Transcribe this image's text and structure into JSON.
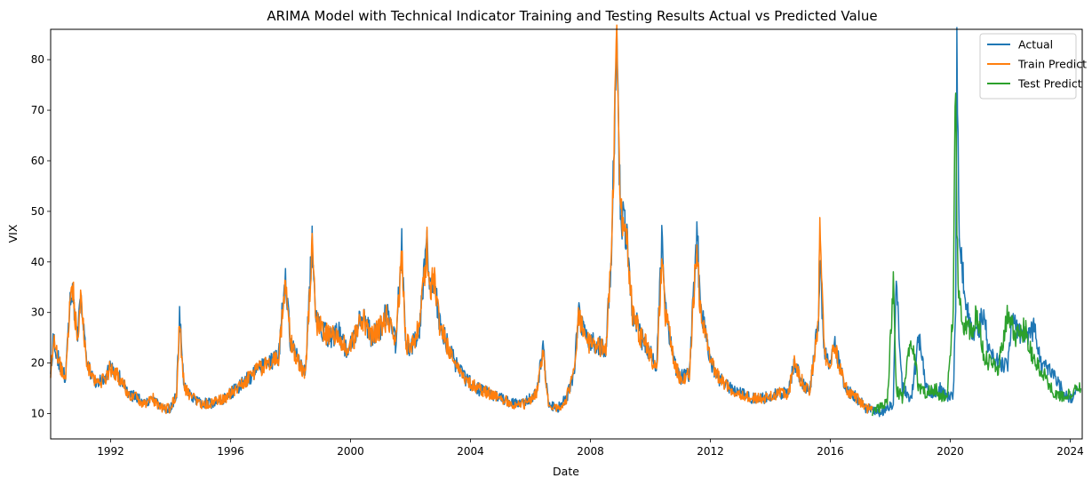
{
  "chart_data": {
    "type": "line",
    "title": "ARIMA Model with Technical Indicator Training and Testing Results Actual vs Predicted Value",
    "xlabel": "Date",
    "ylabel": "VIX",
    "xlim": [
      1990.0,
      2024.4
    ],
    "ylim": [
      5,
      86
    ],
    "x_ticks": [
      1992,
      1996,
      2000,
      2004,
      2008,
      2012,
      2016,
      2020,
      2024
    ],
    "y_ticks": [
      10,
      20,
      30,
      40,
      50,
      60,
      70,
      80
    ],
    "grid": false,
    "legend_position": "top-right",
    "series": [
      {
        "name": "Actual",
        "color": "#1f77b4",
        "x": [
          1990.0,
          1990.1,
          1990.2,
          1990.35,
          1990.5,
          1990.65,
          1990.75,
          1990.8,
          1990.9,
          1991.0,
          1991.2,
          1991.5,
          1991.8,
          1992.0,
          1992.3,
          1992.6,
          1992.9,
          1993.1,
          1993.4,
          1993.7,
          1994.0,
          1994.2,
          1994.3,
          1994.45,
          1994.6,
          1994.8,
          1995.0,
          1995.4,
          1995.8,
          1996.2,
          1996.6,
          1997.0,
          1997.3,
          1997.6,
          1997.83,
          1998.0,
          1998.3,
          1998.5,
          1998.72,
          1998.85,
          1999.0,
          1999.3,
          1999.6,
          1999.9,
          2000.2,
          2000.4,
          2000.7,
          2001.0,
          2001.2,
          2001.5,
          2001.71,
          2001.85,
          2002.0,
          2002.3,
          2002.55,
          2002.65,
          2002.8,
          2002.95,
          2003.2,
          2003.5,
          2003.8,
          2004.2,
          2004.6,
          2005.0,
          2005.4,
          2005.8,
          2006.2,
          2006.42,
          2006.6,
          2006.9,
          2007.2,
          2007.45,
          2007.6,
          2007.9,
          2008.2,
          2008.5,
          2008.7,
          2008.8,
          2008.88,
          2009.0,
          2009.2,
          2009.4,
          2009.7,
          2010.0,
          2010.2,
          2010.38,
          2010.5,
          2010.8,
          2011.0,
          2011.3,
          2011.55,
          2011.65,
          2011.8,
          2012.0,
          2012.3,
          2012.7,
          2013.0,
          2013.4,
          2013.8,
          2014.2,
          2014.6,
          2014.8,
          2015.0,
          2015.3,
          2015.6,
          2015.65,
          2015.8,
          2016.0,
          2016.1,
          2016.5,
          2016.9,
          2017.2,
          2017.4,
          2017.6,
          2017.9,
          2018.1,
          2018.2,
          2018.4,
          2018.7,
          2018.95,
          2019.2,
          2019.5,
          2019.7,
          2019.9,
          2020.1,
          2020.18,
          2020.22,
          2020.3,
          2020.5,
          2020.7,
          2020.9,
          2021.1,
          2021.3,
          2021.6,
          2021.9,
          2022.1,
          2022.2,
          2022.5,
          2022.8,
          2023.0,
          2023.2,
          2023.5,
          2023.8,
          2024.0,
          2024.2,
          2024.35
        ],
        "y": [
          17,
          26,
          22,
          19,
          17,
          33,
          36,
          29,
          26,
          34,
          20,
          16,
          17,
          19,
          17,
          14,
          13,
          12,
          13,
          11,
          11,
          14,
          29,
          15,
          14,
          13,
          12,
          12,
          13,
          15,
          17,
          19,
          20,
          21,
          38,
          24,
          20,
          18,
          45,
          28,
          27,
          25,
          26,
          22,
          26,
          30,
          25,
          27,
          30,
          24,
          43,
          24,
          23,
          27,
          44,
          35,
          38,
          28,
          24,
          20,
          17,
          15,
          14,
          13,
          12,
          12,
          14,
          23,
          12,
          11,
          13,
          18,
          30,
          24,
          24,
          22,
          40,
          65,
          80,
          50,
          45,
          30,
          25,
          22,
          18,
          45,
          30,
          20,
          17,
          18,
          48,
          32,
          27,
          20,
          17,
          15,
          14,
          13,
          13,
          14,
          14,
          20,
          17,
          14,
          28,
          40,
          22,
          20,
          25,
          15,
          13,
          11,
          11,
          10,
          11,
          12,
          37,
          15,
          13,
          25,
          15,
          14,
          15,
          13,
          14,
          30,
          82,
          45,
          32,
          27,
          26,
          30,
          22,
          20,
          19,
          30,
          27,
          25,
          27,
          20,
          19,
          17,
          14,
          13,
          14,
          15
        ]
      },
      {
        "name": "Train Predict",
        "color": "#ff7f0e",
        "x": [
          1990.0,
          1990.1,
          1990.2,
          1990.35,
          1990.5,
          1990.65,
          1990.75,
          1990.8,
          1990.9,
          1991.0,
          1991.2,
          1991.5,
          1991.8,
          1992.0,
          1992.3,
          1992.6,
          1992.9,
          1993.1,
          1993.4,
          1993.7,
          1994.0,
          1994.2,
          1994.3,
          1994.45,
          1994.6,
          1994.8,
          1995.0,
          1995.4,
          1995.8,
          1996.2,
          1996.6,
          1997.0,
          1997.3,
          1997.6,
          1997.83,
          1998.0,
          1998.3,
          1998.5,
          1998.72,
          1998.85,
          1999.0,
          1999.3,
          1999.6,
          1999.9,
          2000.2,
          2000.4,
          2000.7,
          2001.0,
          2001.2,
          2001.5,
          2001.71,
          2001.85,
          2002.0,
          2002.3,
          2002.55,
          2002.65,
          2002.8,
          2002.95,
          2003.2,
          2003.5,
          2003.8,
          2004.2,
          2004.6,
          2005.0,
          2005.4,
          2005.8,
          2006.2,
          2006.42,
          2006.6,
          2006.9,
          2007.2,
          2007.45,
          2007.6,
          2007.9,
          2008.2,
          2008.5,
          2008.7,
          2008.8,
          2008.88,
          2009.0,
          2009.2,
          2009.4,
          2009.7,
          2010.0,
          2010.2,
          2010.38,
          2010.5,
          2010.8,
          2011.0,
          2011.3,
          2011.55,
          2011.65,
          2011.8,
          2012.0,
          2012.3,
          2012.7,
          2013.0,
          2013.4,
          2013.8,
          2014.2,
          2014.6,
          2014.8,
          2015.0,
          2015.3,
          2015.6,
          2015.65,
          2015.8,
          2016.0,
          2016.1,
          2016.5,
          2016.9,
          2017.2,
          2017.4
        ],
        "y": [
          17,
          25,
          22,
          19,
          17,
          32,
          35,
          29,
          26,
          33,
          20,
          16,
          17,
          19,
          17,
          14,
          13,
          12,
          13,
          11,
          11,
          14,
          28,
          15,
          14,
          13,
          12,
          12,
          13,
          15,
          17,
          19,
          20,
          21,
          36,
          24,
          20,
          18,
          43,
          28,
          27,
          25,
          26,
          22,
          26,
          29,
          25,
          27,
          29,
          24,
          41,
          24,
          23,
          27,
          43,
          35,
          37,
          28,
          24,
          20,
          17,
          15,
          14,
          13,
          12,
          12,
          14,
          22,
          12,
          11,
          13,
          18,
          29,
          24,
          24,
          22,
          40,
          65,
          81,
          50,
          45,
          30,
          25,
          22,
          18,
          40,
          30,
          20,
          17,
          18,
          44,
          32,
          27,
          20,
          17,
          15,
          14,
          13,
          13,
          14,
          14,
          20,
          17,
          14,
          28,
          45,
          22,
          20,
          24,
          15,
          13,
          11,
          11
        ]
      },
      {
        "name": "Test Predict",
        "color": "#2ca02c",
        "x": [
          2017.4,
          2017.6,
          2017.9,
          2018.1,
          2018.2,
          2018.4,
          2018.7,
          2018.95,
          2019.2,
          2019.5,
          2019.7,
          2019.9,
          2020.1,
          2020.18,
          2020.22,
          2020.3,
          2020.5,
          2020.7,
          2020.9,
          2021.1,
          2021.3,
          2021.6,
          2021.9,
          2022.1,
          2022.2,
          2022.5,
          2022.8,
          2023.0,
          2023.2,
          2023.5,
          2023.8,
          2024.0,
          2024.2,
          2024.35
        ],
        "y": [
          10,
          11,
          12,
          36,
          15,
          13,
          25,
          15,
          14,
          15,
          13,
          14,
          30,
          80,
          45,
          32,
          27,
          26,
          30,
          22,
          20,
          19,
          30,
          27,
          25,
          27,
          20,
          19,
          17,
          14,
          13,
          14,
          15,
          15
        ]
      }
    ]
  }
}
